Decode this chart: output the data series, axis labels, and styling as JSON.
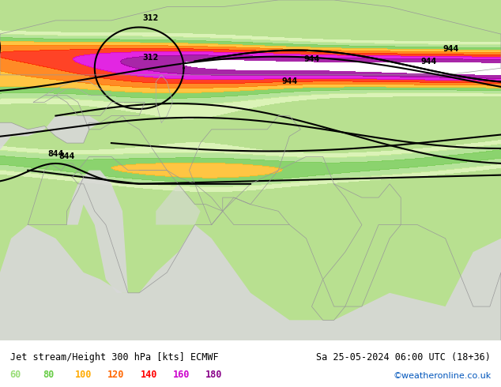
{
  "title_left": "Jet stream/Height 300 hPa [kts] ECMWF",
  "title_right": "Sa 25-05-2024 06:00 UTC (18+36)",
  "credit": "©weatheronline.co.uk",
  "legend_values": [
    "60",
    "80",
    "100",
    "120",
    "140",
    "160",
    "180"
  ],
  "legend_colors": [
    "#99dd77",
    "#66cc44",
    "#ffaa00",
    "#ff6600",
    "#ff0000",
    "#cc00cc",
    "#880088"
  ],
  "bg_color": "#c8e6a0",
  "sea_color": "#d8d8d8",
  "land_color": "#b8e090",
  "map_extent": [
    20,
    110,
    5,
    55
  ],
  "contour_color": "#000000",
  "label_fontsize": 9,
  "title_fontsize": 9.5
}
